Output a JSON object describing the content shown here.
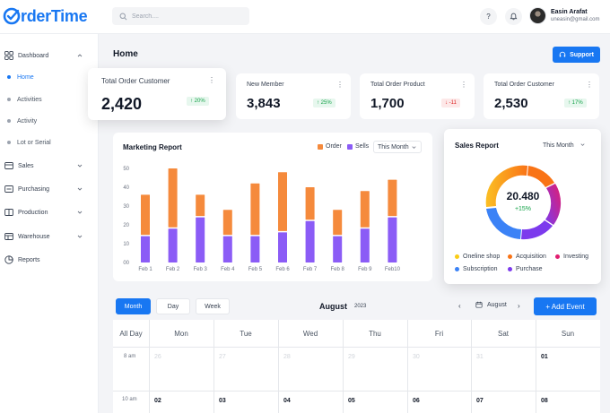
{
  "app": {
    "name": "rderTime"
  },
  "search": {
    "placeholder": "Search...."
  },
  "user": {
    "name": "Easin Arafat",
    "email": "uneasin@gmail.com"
  },
  "icons": {
    "help": "?"
  },
  "sidebar": {
    "dashboard": "Dashboard",
    "sub_items": [
      "Home",
      "Activities",
      "Activity",
      "Lot or Serial"
    ],
    "items": [
      "Sales",
      "Purchasing",
      "Production",
      "Warehouse",
      "Reports"
    ]
  },
  "main": {
    "title": "Home",
    "support_label": "Support"
  },
  "stats": [
    {
      "title": "Total Order Customer",
      "value": "2,420",
      "change": "20%",
      "direction": "up"
    },
    {
      "title": "New Member",
      "value": "3,843",
      "change": "25%",
      "direction": "up"
    },
    {
      "title": "Total Order Product",
      "value": "1,700",
      "change": "-11",
      "direction": "down"
    },
    {
      "title": "Total Order Customer",
      "value": "2,530",
      "change": "17%",
      "direction": "up"
    }
  ],
  "marketing": {
    "title": "Marketing Report",
    "legend": [
      "Order",
      "Sells"
    ],
    "filter": "This Month"
  },
  "chart_data": {
    "type": "bar",
    "stacked": true,
    "title": "Marketing Report",
    "categories": [
      "Feb 1",
      "Feb 2",
      "Feb 3",
      "Feb 4",
      "Feb 5",
      "Feb 6",
      "Feb 7",
      "Feb 8",
      "Feb 9",
      "Feb10"
    ],
    "series": [
      {
        "name": "Sells",
        "color": "#8b5cf6",
        "values": [
          14,
          18,
          24,
          14,
          14,
          16,
          22,
          14,
          18,
          24
        ]
      },
      {
        "name": "Order",
        "color": "#f58a3c",
        "values": [
          22,
          32,
          12,
          14,
          28,
          32,
          18,
          14,
          20,
          20
        ]
      }
    ],
    "ylim": [
      0,
      50
    ],
    "yticks": [
      "50",
      "40",
      "30",
      "20",
      "10",
      "00"
    ],
    "grid": false,
    "legend_position": "top-right"
  },
  "sales": {
    "title": "Sales Report",
    "filter": "This Month",
    "center_value": "20.480",
    "center_change": "+15%",
    "legend": [
      {
        "label": "Oneline shop",
        "color": "#facc15"
      },
      {
        "label": "Acquisition",
        "color": "#f97316"
      },
      {
        "label": "Investing",
        "color": "#e11d6f"
      },
      {
        "label": "Subscription",
        "color": "#3b82f6"
      },
      {
        "label": "Purchase",
        "color": "#7c3aed"
      }
    ]
  },
  "calendar": {
    "views": [
      "Month",
      "Day",
      "Week"
    ],
    "month": "August",
    "year": "2023",
    "month_picker": "August",
    "add_event": "+ Add Event",
    "all_day": "All Day",
    "days": [
      "Mon",
      "Tue",
      "Wed",
      "Thu",
      "Fri",
      "Sat",
      "Sun"
    ],
    "times": [
      "8 am",
      "10 am"
    ],
    "row1": [
      "26",
      "27",
      "28",
      "29",
      "30",
      "31",
      "01"
    ],
    "row2": [
      "02",
      "03",
      "04",
      "05",
      "06",
      "07",
      "08"
    ]
  }
}
